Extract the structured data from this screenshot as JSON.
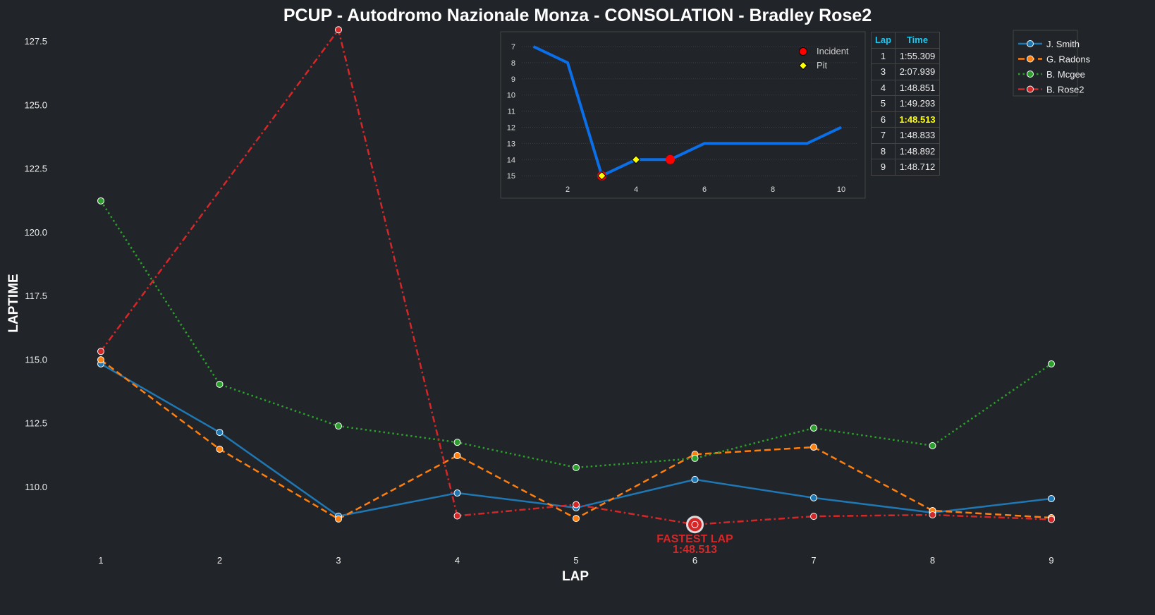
{
  "chart_data": {
    "type": "line",
    "title": "PCUP - Autodromo Nazionale Monza - CONSOLATION - Bradley Rose2",
    "xlabel": "LAP",
    "ylabel": "LAPTIME",
    "x_ticks": [
      1,
      2,
      3,
      4,
      5,
      6,
      7,
      8,
      9
    ],
    "y_ticks": [
      "110.0",
      "112.5",
      "115.0",
      "117.5",
      "120.0",
      "122.5",
      "125.0",
      "127.5"
    ],
    "ylim": [
      106.95,
      128.2
    ],
    "legend_position": "top-right",
    "series": [
      {
        "name": "J. Smith",
        "color": "#1f77b4",
        "style": "solid",
        "x": [
          1,
          2,
          3,
          4,
          5,
          6,
          7,
          8,
          9
        ],
        "values": [
          114.82,
          112.13,
          108.84,
          109.75,
          109.17,
          110.28,
          109.56,
          108.98,
          109.53
        ]
      },
      {
        "name": "G. Radons",
        "color": "#ff7f0e",
        "style": "dashed",
        "x": [
          1,
          2,
          3,
          4,
          5,
          6,
          7,
          8,
          9
        ],
        "values": [
          114.98,
          111.47,
          108.73,
          111.22,
          108.75,
          111.27,
          111.55,
          109.06,
          108.78
        ]
      },
      {
        "name": "B. Mcgee",
        "color": "#2ca02c",
        "style": "dotted",
        "x": [
          1,
          2,
          3,
          4,
          5,
          6,
          7,
          8,
          9
        ],
        "values": [
          121.22,
          114.02,
          112.38,
          111.74,
          110.75,
          111.11,
          112.3,
          111.61,
          114.82
        ]
      },
      {
        "name": "B. Rose2",
        "color": "#d62728",
        "style": "dashdot",
        "x": [
          1,
          3,
          4,
          5,
          6,
          7,
          8,
          9
        ],
        "values": [
          115.309,
          127.939,
          108.851,
          109.293,
          108.513,
          108.833,
          108.892,
          108.712
        ]
      }
    ],
    "annotation": {
      "lap": 6,
      "value": 108.513,
      "line1": "FASTEST LAP",
      "line2": "1:48.513",
      "color": "#d62728"
    },
    "inset": {
      "type": "line",
      "description_label": "position",
      "x": [
        1,
        2,
        3,
        4,
        5,
        6,
        7,
        8,
        9,
        10
      ],
      "values": [
        7,
        8,
        15,
        14,
        14,
        13,
        13,
        13,
        13,
        12
      ],
      "x_ticks": [
        2,
        4,
        6,
        8,
        10
      ],
      "y_ticks": [
        7,
        8,
        9,
        10,
        11,
        12,
        13,
        14,
        15
      ],
      "color": "#0a6fe8",
      "incidents": [
        {
          "x": 3,
          "y": 15
        },
        {
          "x": 5,
          "y": 14
        }
      ],
      "pits": [
        {
          "x": 3,
          "y": 15
        },
        {
          "x": 4,
          "y": 14
        }
      ],
      "legend": {
        "incident": "Incident",
        "pit": "Pit"
      }
    },
    "table": {
      "headers": [
        "Lap",
        "Time"
      ],
      "rows": [
        [
          "1",
          "1:55.309"
        ],
        [
          "3",
          "2:07.939"
        ],
        [
          "4",
          "1:48.851"
        ],
        [
          "5",
          "1:49.293"
        ],
        [
          "6",
          "1:48.513"
        ],
        [
          "7",
          "1:48.833"
        ],
        [
          "8",
          "1:48.892"
        ],
        [
          "9",
          "1:48.712"
        ]
      ],
      "highlight_lap": "6"
    }
  }
}
